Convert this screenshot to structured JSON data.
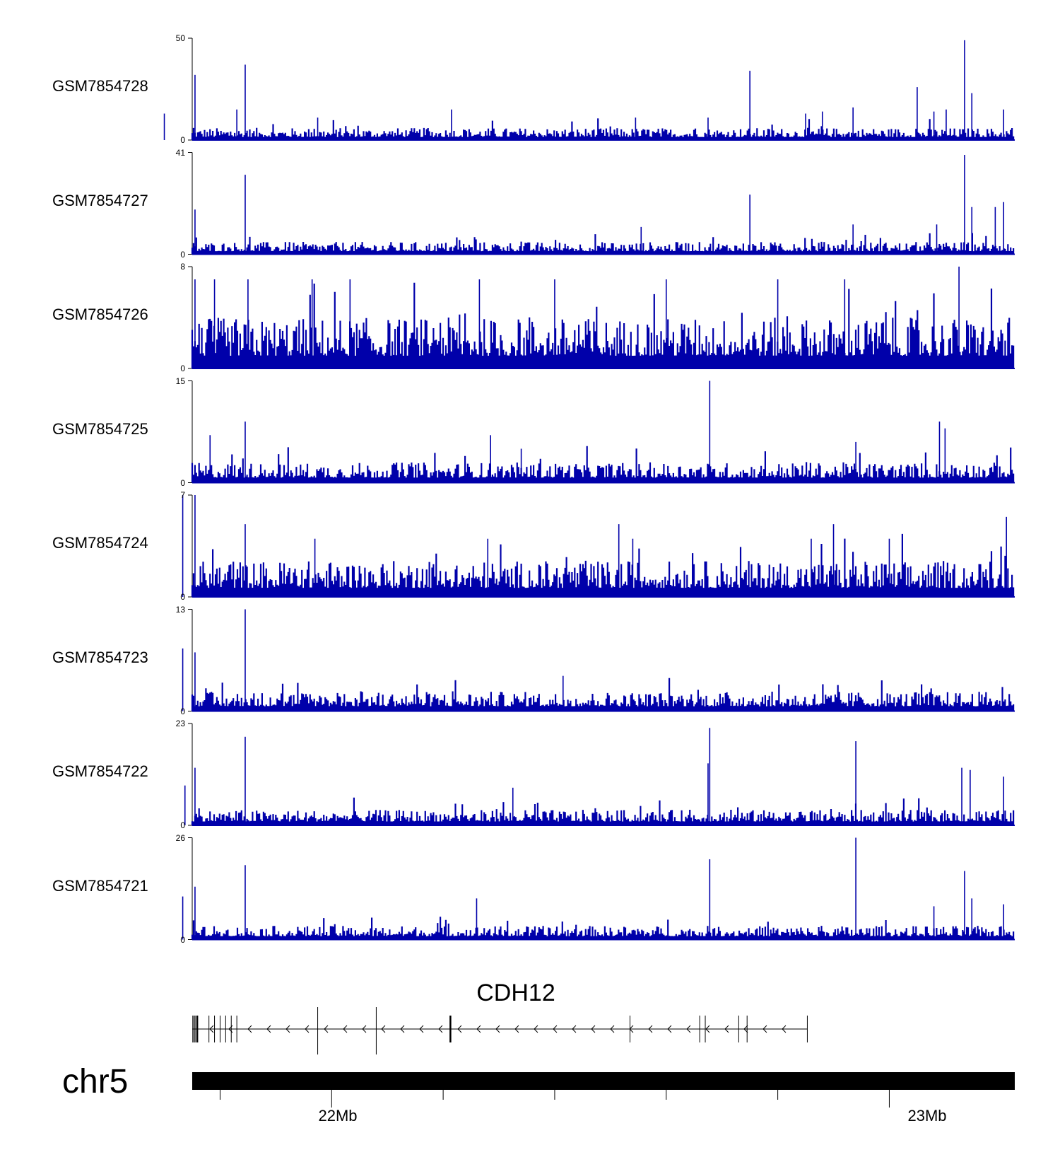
{
  "chart_data": {
    "type": "genome-browser-coverage",
    "color": "#0000aa",
    "tracks": [
      {
        "name": "GSM7854728",
        "ymax": "50",
        "ymin": "0",
        "peaks": [
          {
            "x": 21.755,
            "v": 32
          },
          {
            "x": 21.845,
            "v": 37
          },
          {
            "x": 21.83,
            "v": 15
          },
          {
            "x": 21.7,
            "v": 13
          },
          {
            "x": 21.975,
            "v": 11
          },
          {
            "x": 22.215,
            "v": 15
          },
          {
            "x": 22.545,
            "v": 11
          },
          {
            "x": 22.675,
            "v": 11
          },
          {
            "x": 22.75,
            "v": 34
          },
          {
            "x": 22.85,
            "v": 13
          },
          {
            "x": 22.88,
            "v": 14
          },
          {
            "x": 22.935,
            "v": 16
          },
          {
            "x": 23.05,
            "v": 26
          },
          {
            "x": 23.08,
            "v": 14
          },
          {
            "x": 23.102,
            "v": 15
          },
          {
            "x": 23.135,
            "v": 49
          },
          {
            "x": 23.148,
            "v": 23
          },
          {
            "x": 23.205,
            "v": 15
          }
        ],
        "noise": 6
      },
      {
        "name": "GSM7854727",
        "ymax": "41",
        "ymin": "0",
        "peaks": [
          {
            "x": 21.755,
            "v": 18
          },
          {
            "x": 21.845,
            "v": 32
          },
          {
            "x": 22.555,
            "v": 11
          },
          {
            "x": 22.75,
            "v": 24
          },
          {
            "x": 22.935,
            "v": 12
          },
          {
            "x": 23.085,
            "v": 12
          },
          {
            "x": 23.135,
            "v": 40
          },
          {
            "x": 23.148,
            "v": 19
          },
          {
            "x": 23.19,
            "v": 19
          },
          {
            "x": 23.205,
            "v": 21
          }
        ],
        "noise": 5
      },
      {
        "name": "GSM7854726",
        "ymax": "8",
        "ymin": "0",
        "peaks": [
          {
            "x": 21.755,
            "v": 7
          },
          {
            "x": 21.79,
            "v": 7
          },
          {
            "x": 21.85,
            "v": 7
          },
          {
            "x": 21.965,
            "v": 7
          },
          {
            "x": 22.033,
            "v": 7
          },
          {
            "x": 22.265,
            "v": 7
          },
          {
            "x": 22.4,
            "v": 7
          },
          {
            "x": 22.6,
            "v": 7
          },
          {
            "x": 22.8,
            "v": 7
          },
          {
            "x": 22.92,
            "v": 7
          },
          {
            "x": 23.125,
            "v": 8
          }
        ],
        "noise": 4
      },
      {
        "name": "GSM7854725",
        "ymax": "15",
        "ymin": "0",
        "peaks": [
          {
            "x": 21.782,
            "v": 7
          },
          {
            "x": 21.845,
            "v": 9
          },
          {
            "x": 22.285,
            "v": 7
          },
          {
            "x": 22.34,
            "v": 5
          },
          {
            "x": 22.678,
            "v": 15
          },
          {
            "x": 22.94,
            "v": 6
          },
          {
            "x": 23.09,
            "v": 9
          },
          {
            "x": 23.1,
            "v": 8
          }
        ],
        "noise": 3
      },
      {
        "name": "GSM7854724",
        "ymax": "7",
        "ymin": "0",
        "peaks": [
          {
            "x": 21.733,
            "v": 7
          },
          {
            "x": 21.755,
            "v": 7
          },
          {
            "x": 21.845,
            "v": 5
          },
          {
            "x": 21.97,
            "v": 4
          },
          {
            "x": 22.28,
            "v": 4
          },
          {
            "x": 22.515,
            "v": 5
          },
          {
            "x": 22.54,
            "v": 4
          },
          {
            "x": 22.86,
            "v": 4
          },
          {
            "x": 22.9,
            "v": 5
          },
          {
            "x": 23.0,
            "v": 4
          },
          {
            "x": 23.21,
            "v": 5.5
          }
        ],
        "noise": 2.5
      },
      {
        "name": "GSM7854723",
        "ymax": "13",
        "ymin": "0",
        "peaks": [
          {
            "x": 21.733,
            "v": 8
          },
          {
            "x": 21.755,
            "v": 7.5
          },
          {
            "x": 21.845,
            "v": 13
          },
          {
            "x": 22.415,
            "v": 4.5
          }
        ],
        "noise": 2.5
      },
      {
        "name": "GSM7854722",
        "ymax": "23",
        "ymin": "0",
        "peaks": [
          {
            "x": 21.737,
            "v": 9
          },
          {
            "x": 21.755,
            "v": 13
          },
          {
            "x": 21.845,
            "v": 20
          },
          {
            "x": 22.325,
            "v": 8.5
          },
          {
            "x": 22.678,
            "v": 22
          },
          {
            "x": 22.675,
            "v": 14
          },
          {
            "x": 22.94,
            "v": 19
          },
          {
            "x": 23.13,
            "v": 13
          },
          {
            "x": 23.145,
            "v": 12.5
          },
          {
            "x": 23.205,
            "v": 11
          }
        ],
        "noise": 3.5
      },
      {
        "name": "GSM7854721",
        "ymax": "26",
        "ymin": "0",
        "peaks": [
          {
            "x": 21.733,
            "v": 11
          },
          {
            "x": 21.755,
            "v": 13.5
          },
          {
            "x": 21.845,
            "v": 19
          },
          {
            "x": 22.26,
            "v": 10.5
          },
          {
            "x": 22.678,
            "v": 20.5
          },
          {
            "x": 22.94,
            "v": 26
          },
          {
            "x": 23.08,
            "v": 8.5
          },
          {
            "x": 23.135,
            "v": 17.5
          },
          {
            "x": 23.148,
            "v": 10.5
          },
          {
            "x": 23.205,
            "v": 9
          }
        ],
        "noise": 3.5
      }
    ],
    "gene": {
      "name": "CDH12",
      "strand": "-",
      "start": 21.75,
      "end": 22.853,
      "exons": [
        21.751,
        21.753,
        21.755,
        21.757,
        21.759,
        21.76,
        21.78,
        21.79,
        21.8,
        21.81,
        21.82,
        21.83,
        21.975,
        22.08,
        22.213,
        22.535,
        22.66,
        22.73,
        22.745,
        22.67
      ]
    },
    "chromosome": {
      "name": "chr5",
      "start": 21.75,
      "end": 23.225
    },
    "x_axis": {
      "ticks": [
        21.8,
        22.0,
        22.2,
        22.4,
        22.6,
        22.8,
        23.0
      ],
      "labels": [
        {
          "pos": 22.0,
          "text": "22Mb"
        },
        {
          "pos": 23.0,
          "text": "23Mb"
        }
      ]
    }
  }
}
